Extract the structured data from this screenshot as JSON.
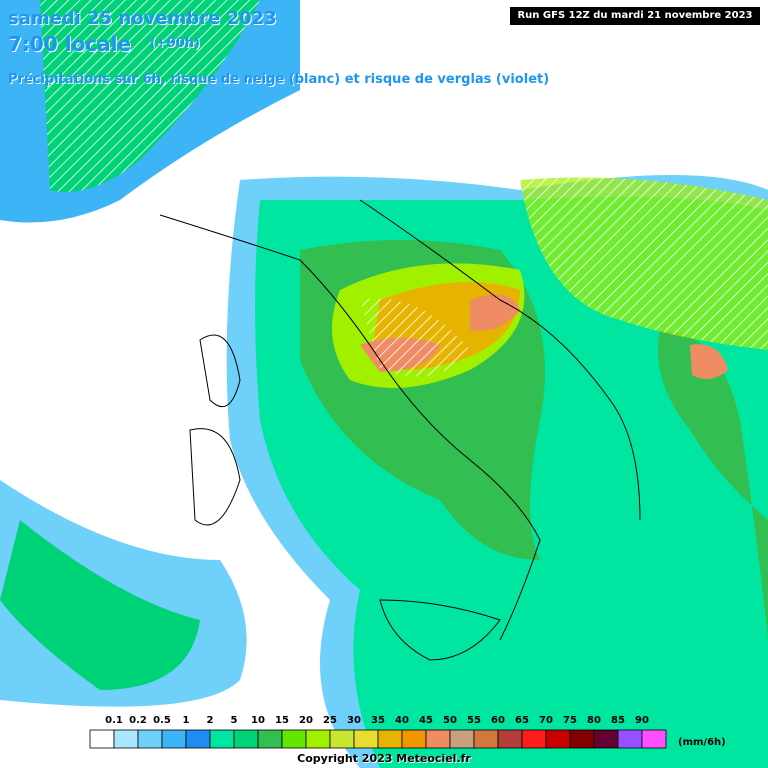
{
  "header": {
    "date": "samedi 25 novembre 2023",
    "time": "7:00 locale",
    "lead": "(+90h)",
    "subtitle": "Précipitations sur 6h, risque de neige (blanc) et risque de verglas (violet)",
    "run": "Run GFS 12Z du mardi 21 novembre 2023"
  },
  "legend": {
    "labels": [
      "0.1",
      "0.2",
      "0.5",
      "1",
      "2",
      "5",
      "10",
      "15",
      "20",
      "25",
      "30",
      "35",
      "40",
      "45",
      "50",
      "55",
      "60",
      "65",
      "70",
      "75",
      "80",
      "85",
      "90"
    ],
    "colors": [
      "#ffffff",
      "#aae6ff",
      "#6fd0fa",
      "#3cb4f5",
      "#1e8cf0",
      "#00e6a0",
      "#00d278",
      "#32be50",
      "#64e600",
      "#a0f000",
      "#c8e632",
      "#e6dc32",
      "#e6b400",
      "#f09600",
      "#f08c64",
      "#c8a080",
      "#d2783c",
      "#b43c3c",
      "#ff1e1e",
      "#c80000",
      "#820000",
      "#640032",
      "#9650ff",
      "#ff50ff"
    ],
    "unit": "(mm/6h)"
  },
  "footer": {
    "copyright": "Copyright 2023 Meteociel.fr"
  }
}
